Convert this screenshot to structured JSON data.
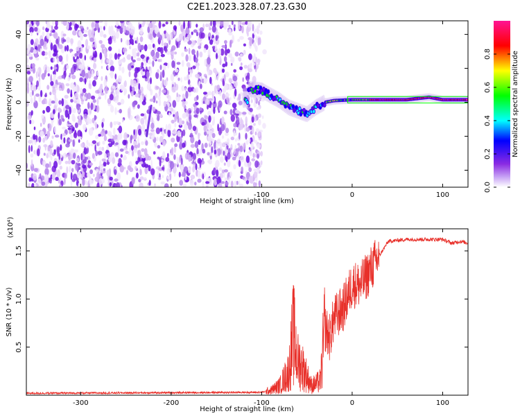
{
  "title": "C2E1.2023.328.07.23.G30",
  "chart_data": [
    {
      "type": "heatmap",
      "xlabel": "Height of straight line (km)",
      "ylabel": "Frequency (Hz)",
      "xlim": [
        -360,
        128
      ],
      "ylim": [
        -50,
        48
      ],
      "x_ticks": [
        -300,
        -200,
        -100,
        0,
        100
      ],
      "y_ticks": [
        -40,
        -20,
        0,
        20,
        40
      ],
      "colorbar": {
        "label": "Normalized spectral amplitude",
        "range": [
          0,
          1
        ],
        "ticks": [
          "0.0",
          "0.2",
          "0.4",
          "0.6",
          "0.8"
        ],
        "colors": [
          "#ffffff",
          "#8a2be2",
          "#0000ff",
          "#00ffff",
          "#00ff00",
          "#ffff00",
          "#ff0000",
          "#ff1493"
        ]
      },
      "regions": [
        {
          "name": "noise",
          "x_range": [
            -360,
            -100
          ],
          "freq_range": [
            -50,
            48
          ],
          "amplitude_range": [
            0.05,
            0.2
          ]
        },
        {
          "name": "signal",
          "trace": [
            {
              "x": -115,
              "f": 8
            },
            {
              "x": -100,
              "f": 7
            },
            {
              "x": -90,
              "f": 4
            },
            {
              "x": -80,
              "f": 1
            },
            {
              "x": -70,
              "f": -3
            },
            {
              "x": -60,
              "f": -5
            },
            {
              "x": -50,
              "f": -7
            },
            {
              "x": -40,
              "f": -3
            },
            {
              "x": -30,
              "f": 0
            },
            {
              "x": -20,
              "f": 1
            },
            {
              "x": 0,
              "f": 1.5
            },
            {
              "x": 30,
              "f": 1.5
            },
            {
              "x": 60,
              "f": 1.5
            },
            {
              "x": 85,
              "f": 3
            },
            {
              "x": 100,
              "f": 1.5
            },
            {
              "x": 128,
              "f": 1.5
            }
          ]
        }
      ]
    },
    {
      "type": "line",
      "xlabel": "Height of straight line (km)",
      "ylabel": "SNR (10 * v/v)",
      "multiplier": "(x10⁴)",
      "xlim": [
        -360,
        128
      ],
      "ylim": [
        0,
        1.73
      ],
      "x_ticks": [
        -300,
        -200,
        -100,
        0,
        100
      ],
      "y_ticks": [
        "0.5",
        "1.0",
        "1.5"
      ],
      "color": "#e8302a",
      "series": [
        {
          "x": [
            -360,
            -100,
            -90,
            -80,
            -70,
            -65,
            -60,
            -55,
            -50,
            -45,
            -40,
            -35,
            -30,
            -25,
            -20,
            -10,
            0,
            10,
            20,
            30,
            40,
            60,
            80,
            100,
            110,
            120,
            128
          ],
          "y": [
            0.02,
            0.03,
            0.05,
            0.1,
            0.25,
            0.65,
            0.35,
            0.3,
            0.2,
            0.1,
            0.12,
            0.15,
            0.7,
            0.6,
            0.8,
            0.9,
            1.15,
            1.15,
            1.3,
            1.45,
            1.6,
            1.62,
            1.62,
            1.62,
            1.58,
            1.6,
            1.58
          ]
        }
      ]
    }
  ]
}
